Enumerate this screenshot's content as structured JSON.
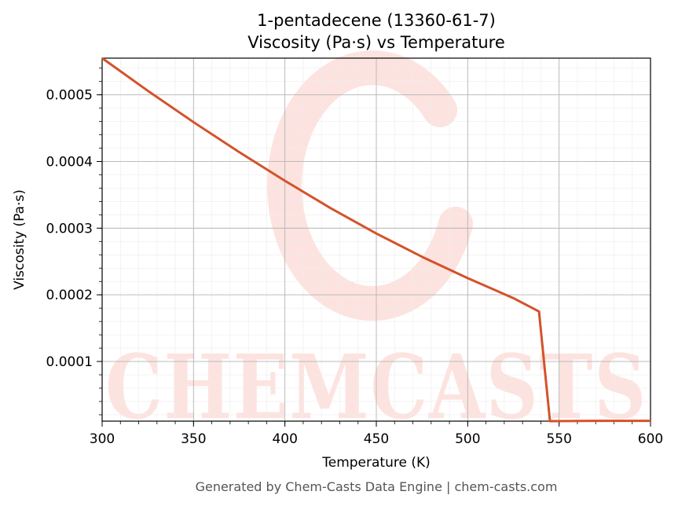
{
  "chart_data": {
    "type": "line",
    "title": [
      "1-pentadecene (13360-61-7)",
      "Viscosity (Pa·s) vs Temperature"
    ],
    "xlabel": "Temperature (K)",
    "ylabel": "Viscosity (Pa·s)",
    "xlim": [
      300,
      600
    ],
    "ylim": [
      1.05e-05,
      0.000555
    ],
    "x_ticks": [
      300,
      350,
      400,
      450,
      500,
      550,
      600
    ],
    "x_tick_labels": [
      "300",
      "350",
      "400",
      "450",
      "500",
      "550",
      "600"
    ],
    "y_ticks": [
      0.0001,
      0.0002,
      0.0003,
      0.0004,
      0.0005
    ],
    "y_tick_labels": [
      "0.0001",
      "0.0002",
      "0.0003",
      "0.0004",
      "0.0005"
    ],
    "grid": true,
    "minor_grid": true,
    "line_color": "#d4522a",
    "series": [
      {
        "x": [
          300,
          325,
          350,
          375,
          400,
          425,
          450,
          475,
          500,
          525,
          539,
          545,
          570,
          600
        ],
        "y": [
          0.000555,
          0.000506,
          0.000459,
          0.000414,
          0.000371,
          0.00033,
          0.000292,
          0.000257,
          0.000225,
          0.000195,
          0.000175,
          1.05e-05,
          1.1e-05,
          1.1e-05
        ]
      }
    ]
  },
  "watermark": {
    "text": "CHEMCASTS",
    "color": "#fde3df"
  },
  "footer": "Generated by Chem-Casts Data Engine | chem-casts.com"
}
